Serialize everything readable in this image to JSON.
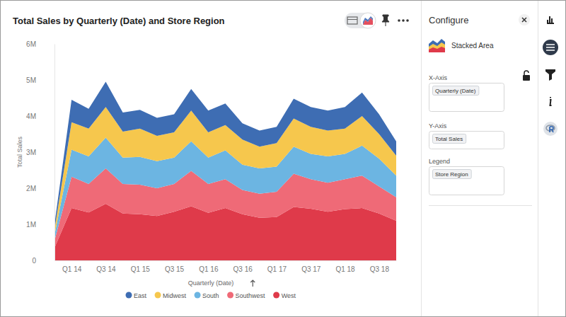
{
  "chart_data": {
    "type": "area",
    "title": "Total Sales by Quarterly (Date) and Store Region",
    "x_label": "Quarterly (Date)",
    "y_label": "Total Sales",
    "stacked": true,
    "grid": false,
    "legend": "bottom",
    "categories": [
      null,
      "Q1 14",
      null,
      "Q3 14",
      null,
      "Q1 15",
      null,
      "Q3 15",
      null,
      "Q1 16",
      null,
      "Q3 16",
      null,
      "Q1 17",
      null,
      "Q3 17",
      null,
      "Q1 18",
      null,
      "Q3 18",
      null
    ],
    "ylim": [
      0,
      6000000
    ],
    "yticks": [
      0,
      {
        "value": 1000000,
        "label": "1M"
      },
      {
        "value": 2000000,
        "label": "2M"
      },
      {
        "value": 3000000,
        "label": "3M"
      },
      {
        "value": 4000000,
        "label": "4M"
      },
      {
        "value": 5000000,
        "label": "5M"
      },
      {
        "value": 6000000,
        "label": "6M"
      }
    ],
    "series": [
      {
        "name": "East",
        "color": "#3e6db3",
        "values": [
          150000,
          620000,
          550000,
          700000,
          530000,
          520000,
          500000,
          500000,
          600000,
          600000,
          600000,
          450000,
          450000,
          450000,
          550000,
          550000,
          550000,
          600000,
          650000,
          550000,
          400000
        ]
      },
      {
        "name": "Midwest",
        "color": "#f6c74d",
        "values": [
          150000,
          760000,
          770000,
          850000,
          720000,
          780000,
          700000,
          700000,
          850000,
          700000,
          700000,
          700000,
          600000,
          650000,
          780000,
          750000,
          720000,
          700000,
          820000,
          680000,
          550000
        ]
      },
      {
        "name": "South",
        "color": "#6cb5e2",
        "values": [
          150000,
          750000,
          760000,
          850000,
          730000,
          770000,
          750000,
          730000,
          820000,
          730000,
          800000,
          700000,
          700000,
          700000,
          750000,
          700000,
          730000,
          700000,
          830000,
          770000,
          600000
        ]
      },
      {
        "name": "Southwest",
        "color": "#ef6a77",
        "values": [
          200000,
          870000,
          790000,
          980000,
          820000,
          820000,
          770000,
          770000,
          980000,
          800000,
          800000,
          670000,
          670000,
          700000,
          920000,
          820000,
          800000,
          830000,
          900000,
          750000,
          650000
        ]
      },
      {
        "name": "West",
        "color": "#df3a4a",
        "values": [
          350000,
          1450000,
          1330000,
          1570000,
          1300000,
          1280000,
          1230000,
          1350000,
          1500000,
          1320000,
          1450000,
          1280000,
          1180000,
          1200000,
          1480000,
          1430000,
          1350000,
          1420000,
          1450000,
          1300000,
          1100000
        ]
      }
    ]
  },
  "panel": {
    "title": "Configure",
    "chart_type": "Stacked Area",
    "fields": [
      {
        "label": "X-Axis",
        "value": "Quarterly (Date)"
      },
      {
        "label": "Y-Axis",
        "value": "Total Sales"
      },
      {
        "label": "Legend",
        "value": "Store Region"
      }
    ]
  }
}
